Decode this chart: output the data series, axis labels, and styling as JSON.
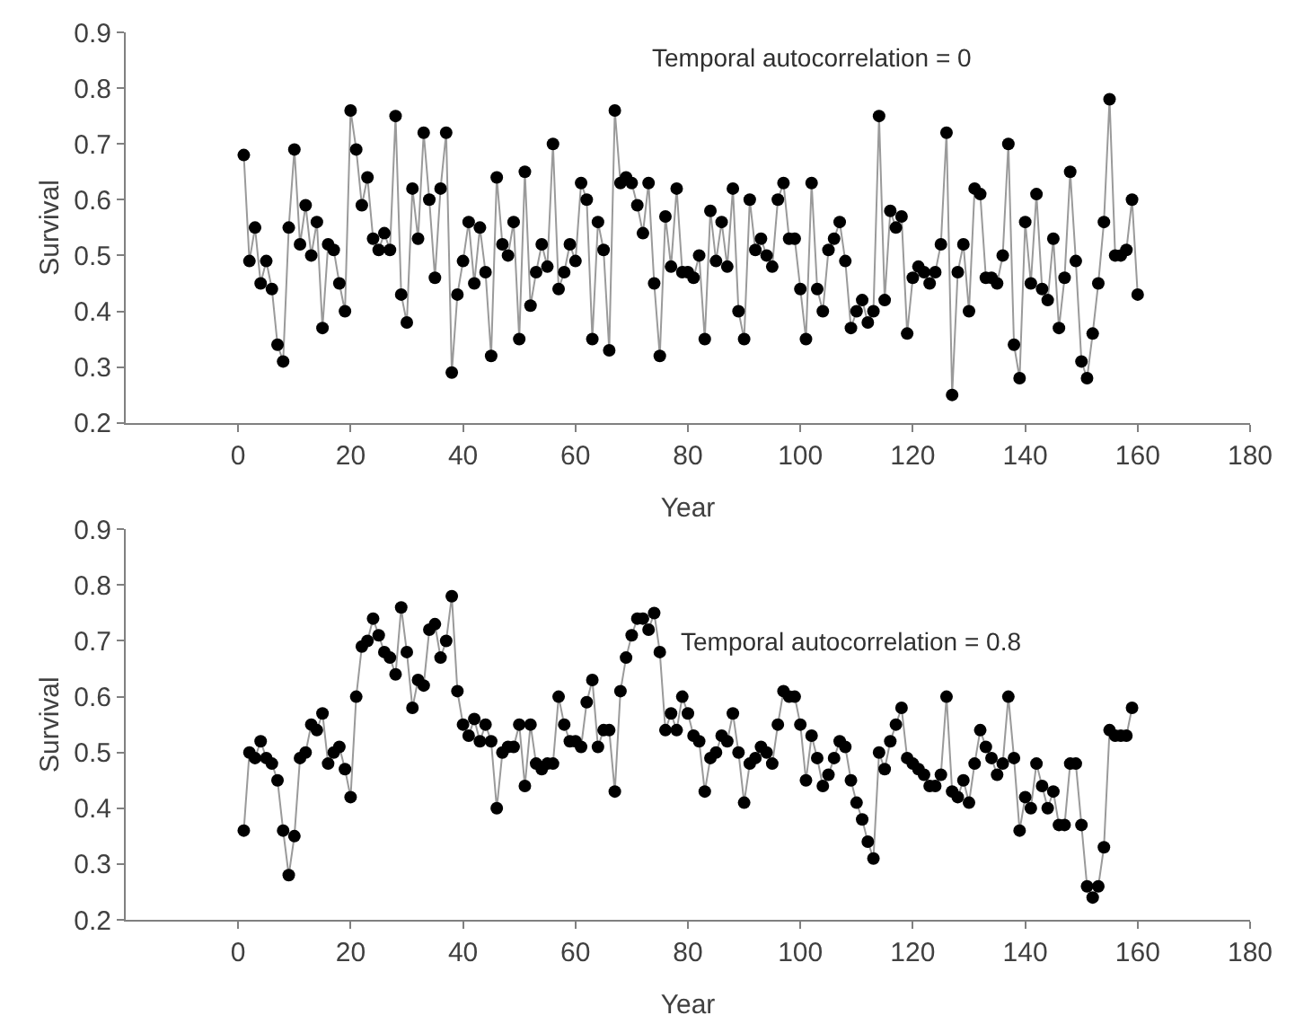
{
  "chart_data": [
    {
      "type": "line",
      "xlabel": "Year",
      "ylabel": "Survival",
      "annotations": [
        "Temporal autocorrelation = 0"
      ],
      "xlim": [
        -20,
        180
      ],
      "xticks": [
        0,
        20,
        40,
        60,
        80,
        100,
        120,
        140,
        160,
        180
      ],
      "ylim": [
        0.2,
        0.9
      ],
      "yticks": [
        0.2,
        0.3,
        0.4,
        0.5,
        0.6,
        0.7,
        0.8,
        0.9
      ],
      "marker": "circle",
      "line_style": "solid",
      "series": [
        {
          "color": "#000000",
          "x": [
            1,
            2,
            3,
            4,
            5,
            6,
            7,
            8,
            9,
            10,
            11,
            12,
            13,
            14,
            15,
            16,
            17,
            18,
            19,
            20,
            21,
            22,
            23,
            24,
            25,
            26,
            27,
            28,
            29,
            30,
            31,
            32,
            33,
            34,
            35,
            36,
            37,
            38,
            39,
            40,
            41,
            42,
            43,
            44,
            45,
            46,
            47,
            48,
            49,
            50,
            51,
            52,
            53,
            54,
            55,
            56,
            57,
            58,
            59,
            60,
            61,
            62,
            63,
            64,
            65,
            66,
            67,
            68,
            69,
            70,
            71,
            72,
            73,
            74,
            75,
            76,
            77,
            78,
            79,
            80,
            81,
            82,
            83,
            84,
            85,
            86,
            87,
            88,
            89,
            90,
            91,
            92,
            93,
            94,
            95,
            96,
            97,
            98,
            99,
            100,
            101,
            102,
            103,
            104,
            105,
            106,
            107,
            108,
            109,
            110,
            111,
            112,
            113,
            114,
            115,
            116,
            117,
            118,
            119,
            120,
            121,
            122,
            123,
            124,
            125,
            126,
            127,
            128,
            129,
            130,
            131,
            132,
            133,
            134,
            135,
            136,
            137,
            138,
            139,
            140,
            141,
            142,
            143,
            144,
            145,
            146,
            147,
            148,
            149,
            150,
            151,
            152,
            153,
            154,
            155,
            156,
            157,
            158,
            159,
            160
          ],
          "values": [
            0.68,
            0.49,
            0.55,
            0.45,
            0.49,
            0.44,
            0.34,
            0.31,
            0.55,
            0.69,
            0.52,
            0.59,
            0.5,
            0.56,
            0.37,
            0.52,
            0.51,
            0.45,
            0.4,
            0.76,
            0.69,
            0.59,
            0.64,
            0.53,
            0.51,
            0.54,
            0.51,
            0.75,
            0.43,
            0.38,
            0.62,
            0.53,
            0.72,
            0.6,
            0.46,
            0.62,
            0.72,
            0.29,
            0.43,
            0.49,
            0.56,
            0.45,
            0.55,
            0.47,
            0.32,
            0.64,
            0.52,
            0.5,
            0.56,
            0.35,
            0.65,
            0.41,
            0.47,
            0.52,
            0.48,
            0.7,
            0.44,
            0.47,
            0.52,
            0.49,
            0.63,
            0.6,
            0.35,
            0.56,
            0.51,
            0.33,
            0.76,
            0.63,
            0.64,
            0.63,
            0.59,
            0.54,
            0.63,
            0.45,
            0.32,
            0.57,
            0.48,
            0.62,
            0.47,
            0.47,
            0.46,
            0.5,
            0.35,
            0.58,
            0.49,
            0.56,
            0.48,
            0.62,
            0.4,
            0.35,
            0.6,
            0.51,
            0.53,
            0.5,
            0.48,
            0.6,
            0.63,
            0.53,
            0.53,
            0.44,
            0.35,
            0.63,
            0.44,
            0.4,
            0.51,
            0.53,
            0.56,
            0.49,
            0.37,
            0.4,
            0.42,
            0.38,
            0.4,
            0.75,
            0.42,
            0.58,
            0.55,
            0.57,
            0.36,
            0.46,
            0.48,
            0.47,
            0.45,
            0.47,
            0.52,
            0.72,
            0.25,
            0.47,
            0.52,
            0.4,
            0.62,
            0.61,
            0.46,
            0.46,
            0.45,
            0.5,
            0.7,
            0.34,
            0.28,
            0.56,
            0.45,
            0.61,
            0.44,
            0.42,
            0.53,
            0.37,
            0.46,
            0.65,
            0.49,
            0.31,
            0.28,
            0.36,
            0.45,
            0.56,
            0.78,
            0.5,
            0.5,
            0.51,
            0.6,
            0.43
          ]
        }
      ]
    },
    {
      "type": "line",
      "xlabel": "Year",
      "ylabel": "Survival",
      "annotations": [
        "Temporal autocorrelation = 0.8"
      ],
      "xlim": [
        -20,
        180
      ],
      "xticks": [
        0,
        20,
        40,
        60,
        80,
        100,
        120,
        140,
        160,
        180
      ],
      "ylim": [
        0.2,
        0.9
      ],
      "yticks": [
        0.2,
        0.3,
        0.4,
        0.5,
        0.6,
        0.7,
        0.8,
        0.9
      ],
      "marker": "circle",
      "line_style": "solid",
      "series": [
        {
          "color": "#000000",
          "x": [
            1,
            2,
            3,
            4,
            5,
            6,
            7,
            8,
            9,
            10,
            11,
            12,
            13,
            14,
            15,
            16,
            17,
            18,
            19,
            20,
            21,
            22,
            23,
            24,
            25,
            26,
            27,
            28,
            29,
            30,
            31,
            32,
            33,
            34,
            35,
            36,
            37,
            38,
            39,
            40,
            41,
            42,
            43,
            44,
            45,
            46,
            47,
            48,
            49,
            50,
            51,
            52,
            53,
            54,
            55,
            56,
            57,
            58,
            59,
            60,
            61,
            62,
            63,
            64,
            65,
            66,
            67,
            68,
            69,
            70,
            71,
            72,
            73,
            74,
            75,
            76,
            77,
            78,
            79,
            80,
            81,
            82,
            83,
            84,
            85,
            86,
            87,
            88,
            89,
            90,
            91,
            92,
            93,
            94,
            95,
            96,
            97,
            98,
            99,
            100,
            101,
            102,
            103,
            104,
            105,
            106,
            107,
            108,
            109,
            110,
            111,
            112,
            113,
            114,
            115,
            116,
            117,
            118,
            119,
            120,
            121,
            122,
            123,
            124,
            125,
            126,
            127,
            128,
            129,
            130,
            131,
            132,
            133,
            134,
            135,
            136,
            137,
            138,
            139,
            140,
            141,
            142,
            143,
            144,
            145,
            146,
            147,
            148,
            149,
            150,
            151,
            152,
            153,
            154,
            155,
            156,
            157,
            158,
            159
          ],
          "values": [
            0.36,
            0.5,
            0.49,
            0.52,
            0.49,
            0.48,
            0.45,
            0.36,
            0.28,
            0.35,
            0.49,
            0.5,
            0.55,
            0.54,
            0.57,
            0.48,
            0.5,
            0.51,
            0.47,
            0.42,
            0.6,
            0.69,
            0.7,
            0.74,
            0.71,
            0.68,
            0.67,
            0.64,
            0.76,
            0.68,
            0.58,
            0.63,
            0.62,
            0.72,
            0.73,
            0.67,
            0.7,
            0.78,
            0.61,
            0.55,
            0.53,
            0.56,
            0.52,
            0.55,
            0.52,
            0.4,
            0.5,
            0.51,
            0.51,
            0.55,
            0.44,
            0.55,
            0.48,
            0.47,
            0.48,
            0.48,
            0.6,
            0.55,
            0.52,
            0.52,
            0.51,
            0.59,
            0.63,
            0.51,
            0.54,
            0.54,
            0.43,
            0.61,
            0.67,
            0.71,
            0.74,
            0.74,
            0.72,
            0.75,
            0.68,
            0.54,
            0.57,
            0.54,
            0.6,
            0.57,
            0.53,
            0.52,
            0.43,
            0.49,
            0.5,
            0.53,
            0.52,
            0.57,
            0.5,
            0.41,
            0.48,
            0.49,
            0.51,
            0.5,
            0.48,
            0.55,
            0.61,
            0.6,
            0.6,
            0.55,
            0.45,
            0.53,
            0.49,
            0.44,
            0.46,
            0.49,
            0.52,
            0.51,
            0.45,
            0.41,
            0.38,
            0.34,
            0.31,
            0.5,
            0.47,
            0.52,
            0.55,
            0.58,
            0.49,
            0.48,
            0.47,
            0.46,
            0.44,
            0.44,
            0.46,
            0.6,
            0.43,
            0.42,
            0.45,
            0.41,
            0.48,
            0.54,
            0.51,
            0.49,
            0.46,
            0.48,
            0.6,
            0.49,
            0.36,
            0.42,
            0.4,
            0.48,
            0.44,
            0.4,
            0.43,
            0.37,
            0.37,
            0.48,
            0.48,
            0.37,
            0.26,
            0.24,
            0.26,
            0.33,
            0.54,
            0.53,
            0.53,
            0.53,
            0.58
          ]
        }
      ]
    }
  ]
}
